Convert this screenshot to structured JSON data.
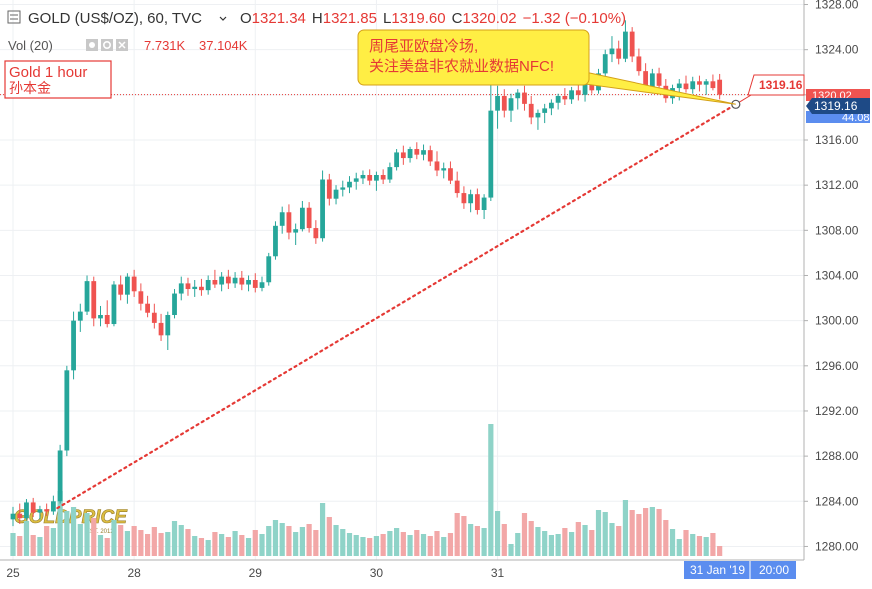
{
  "header": {
    "symbol": "GOLD (US$/OZ), 60, TVC",
    "open_label": "O",
    "open": "1321.34",
    "high_label": "H",
    "high": "1321.85",
    "low_label": "L",
    "low": "1319.60",
    "close_label": "C",
    "close": "1320.02",
    "change": "−1.32 (−0.10%)"
  },
  "volume_legend": {
    "label": "Vol (20)",
    "value1": "7.731K",
    "value2": "37.104K"
  },
  "label_box": {
    "line1": "Gold 1 hour",
    "line2": "孙本金"
  },
  "callout": {
    "line1": "周尾亚欧盘冷场,",
    "line2": "关注美盘非农就业数据NFC!"
  },
  "price_tags": {
    "line_value": "1319.16",
    "axis_current": "1319.16",
    "axis_close": "1320.02",
    "axis_hidden": "44.08"
  },
  "time_tag": {
    "date": "31 Jan '19",
    "time": "20:00"
  },
  "watermark": {
    "text": "GOLDPRICE",
    "sub": "EST. 2012"
  },
  "colors": {
    "up": "#26a69a",
    "down": "#ef5350",
    "up_vol": "#8fd3c8",
    "down_vol": "#f2a7a7",
    "trend": "#e53935",
    "callout_bg": "#ffee44"
  },
  "chart_data": {
    "type": "candlestick",
    "y_axis": {
      "ticks": [
        1280,
        1284,
        1288,
        1292,
        1296,
        1300,
        1304,
        1308,
        1312,
        1316,
        1320,
        1324,
        1328
      ],
      "range": [
        1278.8,
        1328.4
      ]
    },
    "x_axis": {
      "labels": [
        {
          "label": "25",
          "index": 0
        },
        {
          "label": "28",
          "index": 18
        },
        {
          "label": "29",
          "index": 36
        },
        {
          "label": "30",
          "index": 54
        },
        {
          "label": "31",
          "index": 72
        }
      ]
    },
    "candles": [
      {
        "o": 1282.4,
        "h": 1283.5,
        "l": 1281.8,
        "c": 1282.9,
        "v": 2.3
      },
      {
        "o": 1282.9,
        "h": 1283.8,
        "l": 1282.0,
        "c": 1282.5,
        "v": 2.0
      },
      {
        "o": 1282.5,
        "h": 1284.2,
        "l": 1282.3,
        "c": 1283.9,
        "v": 3.5
      },
      {
        "o": 1283.9,
        "h": 1284.3,
        "l": 1282.6,
        "c": 1283.0,
        "v": 2.1
      },
      {
        "o": 1283.0,
        "h": 1283.6,
        "l": 1282.4,
        "c": 1283.3,
        "v": 1.9
      },
      {
        "o": 1283.3,
        "h": 1283.8,
        "l": 1282.7,
        "c": 1283.1,
        "v": 3.0
      },
      {
        "o": 1283.1,
        "h": 1284.5,
        "l": 1282.8,
        "c": 1284.0,
        "v": 2.8
      },
      {
        "o": 1284.0,
        "h": 1289.0,
        "l": 1283.8,
        "c": 1288.5,
        "v": 6.5
      },
      {
        "o": 1288.5,
        "h": 1296.0,
        "l": 1288.0,
        "c": 1295.6,
        "v": 4.5
      },
      {
        "o": 1295.6,
        "h": 1300.8,
        "l": 1294.8,
        "c": 1300.0,
        "v": 4.9
      },
      {
        "o": 1300.0,
        "h": 1301.5,
        "l": 1299.0,
        "c": 1300.8,
        "v": 3.2
      },
      {
        "o": 1300.8,
        "h": 1304.0,
        "l": 1300.5,
        "c": 1303.5,
        "v": 4.3
      },
      {
        "o": 1303.5,
        "h": 1303.9,
        "l": 1299.5,
        "c": 1300.2,
        "v": 3.8
      },
      {
        "o": 1300.2,
        "h": 1301.3,
        "l": 1299.5,
        "c": 1300.5,
        "v": 2.1
      },
      {
        "o": 1300.5,
        "h": 1301.8,
        "l": 1299.4,
        "c": 1299.7,
        "v": 1.8
      },
      {
        "o": 1299.7,
        "h": 1303.5,
        "l": 1299.5,
        "c": 1303.2,
        "v": 3.6
      },
      {
        "o": 1303.2,
        "h": 1304.0,
        "l": 1301.8,
        "c": 1302.3,
        "v": 3.1
      },
      {
        "o": 1302.3,
        "h": 1304.2,
        "l": 1301.5,
        "c": 1303.9,
        "v": 2.5
      },
      {
        "o": 1303.9,
        "h": 1304.5,
        "l": 1302.1,
        "c": 1302.6,
        "v": 3.0
      },
      {
        "o": 1302.6,
        "h": 1303.3,
        "l": 1300.9,
        "c": 1301.5,
        "v": 2.6
      },
      {
        "o": 1301.5,
        "h": 1302.2,
        "l": 1300.3,
        "c": 1300.7,
        "v": 2.2
      },
      {
        "o": 1300.7,
        "h": 1301.5,
        "l": 1299.3,
        "c": 1299.8,
        "v": 2.9
      },
      {
        "o": 1299.8,
        "h": 1300.6,
        "l": 1298.2,
        "c": 1298.7,
        "v": 2.3
      },
      {
        "o": 1298.7,
        "h": 1300.8,
        "l": 1297.4,
        "c": 1300.5,
        "v": 2.4
      },
      {
        "o": 1300.5,
        "h": 1302.8,
        "l": 1300.2,
        "c": 1302.4,
        "v": 3.5
      },
      {
        "o": 1302.4,
        "h": 1303.9,
        "l": 1301.8,
        "c": 1303.3,
        "v": 3.1
      },
      {
        "o": 1303.3,
        "h": 1303.8,
        "l": 1302.2,
        "c": 1302.8,
        "v": 2.7
      },
      {
        "o": 1302.8,
        "h": 1303.6,
        "l": 1302.1,
        "c": 1303.0,
        "v": 2.0
      },
      {
        "o": 1303.0,
        "h": 1303.7,
        "l": 1302.2,
        "c": 1302.7,
        "v": 1.8
      },
      {
        "o": 1302.7,
        "h": 1304.0,
        "l": 1302.3,
        "c": 1303.6,
        "v": 1.6
      },
      {
        "o": 1303.6,
        "h": 1304.5,
        "l": 1302.9,
        "c": 1303.2,
        "v": 2.4
      },
      {
        "o": 1303.2,
        "h": 1304.3,
        "l": 1302.6,
        "c": 1303.9,
        "v": 2.2
      },
      {
        "o": 1303.9,
        "h": 1304.5,
        "l": 1302.8,
        "c": 1303.3,
        "v": 1.9
      },
      {
        "o": 1303.3,
        "h": 1304.3,
        "l": 1302.9,
        "c": 1303.8,
        "v": 2.5
      },
      {
        "o": 1303.8,
        "h": 1304.4,
        "l": 1302.7,
        "c": 1303.2,
        "v": 2.1
      },
      {
        "o": 1303.2,
        "h": 1304.0,
        "l": 1302.6,
        "c": 1303.6,
        "v": 1.8
      },
      {
        "o": 1303.6,
        "h": 1304.2,
        "l": 1302.5,
        "c": 1302.9,
        "v": 2.6
      },
      {
        "o": 1302.9,
        "h": 1303.9,
        "l": 1302.6,
        "c": 1303.4,
        "v": 2.2
      },
      {
        "o": 1303.4,
        "h": 1306.0,
        "l": 1303.1,
        "c": 1305.7,
        "v": 3.0
      },
      {
        "o": 1305.7,
        "h": 1308.8,
        "l": 1305.4,
        "c": 1308.4,
        "v": 3.6
      },
      {
        "o": 1308.4,
        "h": 1310.1,
        "l": 1307.7,
        "c": 1309.6,
        "v": 3.3
      },
      {
        "o": 1309.6,
        "h": 1310.3,
        "l": 1307.2,
        "c": 1307.8,
        "v": 3.0
      },
      {
        "o": 1307.8,
        "h": 1308.6,
        "l": 1306.7,
        "c": 1308.1,
        "v": 2.4
      },
      {
        "o": 1308.1,
        "h": 1310.6,
        "l": 1307.9,
        "c": 1310.0,
        "v": 2.9
      },
      {
        "o": 1310.0,
        "h": 1310.5,
        "l": 1307.8,
        "c": 1308.2,
        "v": 3.2
      },
      {
        "o": 1308.2,
        "h": 1308.9,
        "l": 1306.8,
        "c": 1307.3,
        "v": 2.6
      },
      {
        "o": 1307.3,
        "h": 1313.3,
        "l": 1307.0,
        "c": 1312.5,
        "v": 5.3
      },
      {
        "o": 1312.5,
        "h": 1313.0,
        "l": 1310.2,
        "c": 1310.8,
        "v": 3.9
      },
      {
        "o": 1310.8,
        "h": 1312.0,
        "l": 1310.3,
        "c": 1311.6,
        "v": 3.1
      },
      {
        "o": 1311.6,
        "h": 1312.4,
        "l": 1311.0,
        "c": 1311.8,
        "v": 2.7
      },
      {
        "o": 1311.8,
        "h": 1312.8,
        "l": 1311.3,
        "c": 1312.3,
        "v": 2.3
      },
      {
        "o": 1312.3,
        "h": 1313.1,
        "l": 1311.6,
        "c": 1312.6,
        "v": 2.1
      },
      {
        "o": 1312.6,
        "h": 1313.3,
        "l": 1312.1,
        "c": 1312.9,
        "v": 1.9
      },
      {
        "o": 1312.9,
        "h": 1313.4,
        "l": 1312.0,
        "c": 1312.4,
        "v": 1.8
      },
      {
        "o": 1312.4,
        "h": 1313.2,
        "l": 1311.5,
        "c": 1312.9,
        "v": 2.0
      },
      {
        "o": 1312.9,
        "h": 1313.4,
        "l": 1312.1,
        "c": 1312.5,
        "v": 2.2
      },
      {
        "o": 1312.5,
        "h": 1314.0,
        "l": 1312.2,
        "c": 1313.6,
        "v": 2.5
      },
      {
        "o": 1313.6,
        "h": 1315.2,
        "l": 1313.3,
        "c": 1314.9,
        "v": 2.8
      },
      {
        "o": 1314.9,
        "h": 1315.5,
        "l": 1313.8,
        "c": 1314.4,
        "v": 2.4
      },
      {
        "o": 1314.4,
        "h": 1315.4,
        "l": 1314.0,
        "c": 1315.2,
        "v": 2.1
      },
      {
        "o": 1315.2,
        "h": 1315.8,
        "l": 1314.3,
        "c": 1314.7,
        "v": 2.6
      },
      {
        "o": 1314.7,
        "h": 1315.6,
        "l": 1314.2,
        "c": 1315.1,
        "v": 2.2
      },
      {
        "o": 1315.1,
        "h": 1315.5,
        "l": 1313.7,
        "c": 1314.1,
        "v": 2.0
      },
      {
        "o": 1314.1,
        "h": 1315.0,
        "l": 1312.8,
        "c": 1313.3,
        "v": 2.5
      },
      {
        "o": 1313.3,
        "h": 1314.0,
        "l": 1312.6,
        "c": 1313.5,
        "v": 1.9
      },
      {
        "o": 1313.5,
        "h": 1314.1,
        "l": 1312.1,
        "c": 1312.4,
        "v": 2.3
      },
      {
        "o": 1312.4,
        "h": 1313.2,
        "l": 1310.9,
        "c": 1311.3,
        "v": 4.3
      },
      {
        "o": 1311.3,
        "h": 1311.9,
        "l": 1309.9,
        "c": 1310.4,
        "v": 4.0
      },
      {
        "o": 1310.4,
        "h": 1311.6,
        "l": 1309.6,
        "c": 1311.2,
        "v": 3.2
      },
      {
        "o": 1311.2,
        "h": 1311.7,
        "l": 1309.4,
        "c": 1309.8,
        "v": 3.0
      },
      {
        "o": 1309.8,
        "h": 1311.2,
        "l": 1309.0,
        "c": 1310.9,
        "v": 2.8
      },
      {
        "o": 1310.9,
        "h": 1324.0,
        "l": 1310.6,
        "c": 1318.6,
        "v": 13.2
      },
      {
        "o": 1318.6,
        "h": 1320.8,
        "l": 1317.0,
        "c": 1319.9,
        "v": 4.5
      },
      {
        "o": 1319.9,
        "h": 1320.5,
        "l": 1318.0,
        "c": 1318.6,
        "v": 3.2
      },
      {
        "o": 1318.6,
        "h": 1320.1,
        "l": 1317.6,
        "c": 1319.7,
        "v": 1.2
      },
      {
        "o": 1319.7,
        "h": 1320.5,
        "l": 1318.7,
        "c": 1320.2,
        "v": 2.3
      },
      {
        "o": 1320.2,
        "h": 1320.8,
        "l": 1318.6,
        "c": 1319.2,
        "v": 4.3
      },
      {
        "o": 1319.2,
        "h": 1319.9,
        "l": 1317.4,
        "c": 1318.0,
        "v": 3.5
      },
      {
        "o": 1318.0,
        "h": 1318.7,
        "l": 1316.9,
        "c": 1318.4,
        "v": 2.9
      },
      {
        "o": 1318.4,
        "h": 1319.2,
        "l": 1317.5,
        "c": 1318.8,
        "v": 2.5
      },
      {
        "o": 1318.8,
        "h": 1319.6,
        "l": 1318.2,
        "c": 1319.3,
        "v": 2.1
      },
      {
        "o": 1319.3,
        "h": 1320.1,
        "l": 1318.7,
        "c": 1319.9,
        "v": 2.2
      },
      {
        "o": 1319.9,
        "h": 1320.6,
        "l": 1319.1,
        "c": 1319.6,
        "v": 2.8
      },
      {
        "o": 1319.6,
        "h": 1320.7,
        "l": 1319.2,
        "c": 1320.4,
        "v": 2.4
      },
      {
        "o": 1320.4,
        "h": 1321.0,
        "l": 1319.5,
        "c": 1320.0,
        "v": 3.4
      },
      {
        "o": 1320.0,
        "h": 1321.4,
        "l": 1319.4,
        "c": 1321.0,
        "v": 3.1
      },
      {
        "o": 1321.0,
        "h": 1321.6,
        "l": 1320.1,
        "c": 1320.4,
        "v": 2.6
      },
      {
        "o": 1320.4,
        "h": 1322.3,
        "l": 1320.1,
        "c": 1321.9,
        "v": 4.6
      },
      {
        "o": 1321.9,
        "h": 1324.0,
        "l": 1321.6,
        "c": 1323.6,
        "v": 4.4
      },
      {
        "o": 1323.6,
        "h": 1325.2,
        "l": 1322.9,
        "c": 1324.1,
        "v": 3.3
      },
      {
        "o": 1324.1,
        "h": 1324.8,
        "l": 1322.7,
        "c": 1323.2,
        "v": 3.0
      },
      {
        "o": 1323.2,
        "h": 1326.6,
        "l": 1322.9,
        "c": 1325.6,
        "v": 5.6
      },
      {
        "o": 1325.6,
        "h": 1326.0,
        "l": 1322.9,
        "c": 1323.4,
        "v": 4.6
      },
      {
        "o": 1323.4,
        "h": 1324.1,
        "l": 1321.7,
        "c": 1322.1,
        "v": 4.2
      },
      {
        "o": 1322.1,
        "h": 1322.8,
        "l": 1320.2,
        "c": 1320.6,
        "v": 4.8
      },
      {
        "o": 1320.6,
        "h": 1322.3,
        "l": 1320.1,
        "c": 1321.9,
        "v": 4.9
      },
      {
        "o": 1321.9,
        "h": 1322.4,
        "l": 1320.4,
        "c": 1320.8,
        "v": 4.7
      },
      {
        "o": 1320.8,
        "h": 1321.4,
        "l": 1319.3,
        "c": 1319.7,
        "v": 3.6
      },
      {
        "o": 1319.7,
        "h": 1320.9,
        "l": 1319.2,
        "c": 1320.6,
        "v": 2.7
      },
      {
        "o": 1320.6,
        "h": 1321.4,
        "l": 1319.5,
        "c": 1321.0,
        "v": 1.7
      },
      {
        "o": 1321.0,
        "h": 1321.7,
        "l": 1320.2,
        "c": 1320.5,
        "v": 2.6
      },
      {
        "o": 1320.5,
        "h": 1321.6,
        "l": 1320.1,
        "c": 1321.2,
        "v": 2.2
      },
      {
        "o": 1321.2,
        "h": 1321.7,
        "l": 1320.3,
        "c": 1320.9,
        "v": 2.0
      },
      {
        "o": 1320.9,
        "h": 1321.4,
        "l": 1320.0,
        "c": 1321.2,
        "v": 1.9
      },
      {
        "o": 1321.2,
        "h": 1321.8,
        "l": 1320.4,
        "c": 1320.6,
        "v": 2.3
      },
      {
        "o": 1321.34,
        "h": 1321.85,
        "l": 1319.6,
        "c": 1320.02,
        "v": 1.0
      }
    ],
    "trend_line": {
      "from": {
        "index": 6.6,
        "value": 1283.4
      },
      "to": {
        "index": 107.4,
        "value": 1319.16
      }
    },
    "horizontal_line": {
      "value": 1320.02
    }
  }
}
